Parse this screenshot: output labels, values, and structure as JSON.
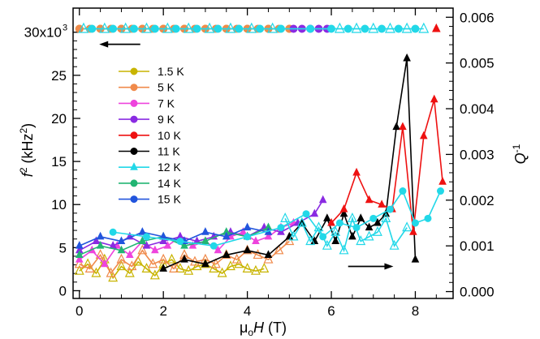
{
  "chart_data": {
    "type": "scatter",
    "title": "",
    "xlabel": {
      "pre": "μ",
      "sub": "o",
      "mid": "H",
      "post": " (T)"
    },
    "ylabel_left": {
      "main": "f",
      "sup": "2",
      "unit_pre": " (kHz",
      "unit_sup": "2",
      "unit_post": ")"
    },
    "ylabel_right": {
      "main": "Q",
      "sup": "-1"
    },
    "xlim": [
      -0.15,
      8.9
    ],
    "ylim_left": [
      -0.9,
      32.8
    ],
    "ylim_right": [
      -0.00015,
      0.0062
    ],
    "x_ticks": [
      0,
      2,
      4,
      6,
      8
    ],
    "x_tick_labels": [
      "0",
      "2",
      "4",
      "6",
      "8"
    ],
    "y_left_ticks": [
      0,
      5,
      10,
      15,
      20,
      25
    ],
    "y_left_tick_labels": [
      "0",
      "5",
      "10",
      "15",
      "20",
      "25"
    ],
    "y_left_top_label": "30x10",
    "y_left_top_sup": "3",
    "y_left_top_value": 30,
    "y_right_ticks": [
      0,
      0.001,
      0.002,
      0.003,
      0.004,
      0.005,
      0.006
    ],
    "y_right_tick_labels": [
      "0.000",
      "0.001",
      "0.002",
      "0.003",
      "0.004",
      "0.005",
      "0.006"
    ],
    "legend_position": "upper-left",
    "legend": [
      {
        "name": "1.5 K",
        "color": "#c8b400",
        "marker": "circle"
      },
      {
        "name": "5 K",
        "color": "#f08a4b",
        "marker": "circle"
      },
      {
        "name": "7 K",
        "color": "#ee44dd",
        "marker": "circle"
      },
      {
        "name": "9 K",
        "color": "#8a2be2",
        "marker": "circle"
      },
      {
        "name": "10 K",
        "color": "#ee1111",
        "marker": "circle"
      },
      {
        "name": "11 K",
        "color": "#000000",
        "marker": "circle"
      },
      {
        "name": "12 K",
        "color": "#22d8e8",
        "marker": "triangle"
      },
      {
        "name": "14 K",
        "color": "#22b573",
        "marker": "circle"
      },
      {
        "name": "15 K",
        "color": "#2255dd",
        "marker": "circle"
      }
    ],
    "arrows": [
      {
        "direction": "left",
        "x_from": 1.45,
        "x_to": 0.55,
        "y": 28.6,
        "axis": "left"
      },
      {
        "direction": "right",
        "x_from": 6.4,
        "x_to": 7.4,
        "y": 0.00055,
        "axis": "right"
      }
    ],
    "series": [
      {
        "name": "f2 1.5 K",
        "axis": "left",
        "color": "#c8b400",
        "marker": "circle",
        "x": [
          0,
          0.5,
          1,
          1.5,
          2,
          2.5,
          3,
          3.5,
          4,
          4.5,
          5
        ],
        "y": [
          30.4,
          30.4,
          30.4,
          30.4,
          30.4,
          30.4,
          30.4,
          30.4,
          30.4,
          30.4,
          30.4
        ]
      },
      {
        "name": "f2 5 K",
        "axis": "left",
        "color": "#f08a4b",
        "marker": "circle",
        "x": [
          0,
          0.25,
          0.5,
          0.75,
          1,
          1.25,
          1.5,
          1.75,
          2,
          2.25,
          2.5,
          2.75,
          3,
          3.25,
          3.5,
          3.75,
          4,
          4.25,
          4.5,
          4.75,
          5
        ],
        "y": [
          30.4,
          30.4,
          30.4,
          30.4,
          30.4,
          30.4,
          30.4,
          30.4,
          30.4,
          30.4,
          30.4,
          30.4,
          30.4,
          30.4,
          30.4,
          30.4,
          30.4,
          30.4,
          30.4,
          30.4,
          30.4
        ]
      },
      {
        "name": "f2 9 K",
        "axis": "left",
        "color": "#8a2be2",
        "marker": "circle",
        "x": [
          5.1,
          5.3,
          5.5,
          5.7,
          5.9
        ],
        "y": [
          30.4,
          30.4,
          30.4,
          30.4,
          30.4
        ]
      },
      {
        "name": "f2 12 K",
        "axis": "left",
        "color": "#22d8e8",
        "marker": "circle",
        "x": [
          0.3,
          0.8,
          1.3,
          1.8,
          2.3,
          2.8,
          3.3,
          3.8,
          4.3,
          4.8,
          5.5,
          6.0,
          6.4,
          6.8,
          7.2,
          7.6,
          8.0
        ],
        "y": [
          30.4,
          30.4,
          30.4,
          30.4,
          30.4,
          30.4,
          30.4,
          30.4,
          30.4,
          30.4,
          30.4,
          30.4,
          30.4,
          30.4,
          30.4,
          30.4,
          30.4
        ]
      },
      {
        "name": "f2 12 K tri",
        "axis": "left",
        "color": "#22d8e8",
        "marker": "triangle-open",
        "x": [
          0.1,
          0.6,
          1.1,
          1.6,
          2.1,
          2.6,
          3.1,
          3.6,
          4.1,
          4.6,
          6.2,
          6.6,
          7.0,
          7.4,
          7.8,
          8.2
        ],
        "y": [
          30.4,
          30.4,
          30.4,
          30.4,
          30.4,
          30.4,
          30.4,
          30.4,
          30.4,
          30.4,
          30.4,
          30.4,
          30.4,
          30.4,
          30.4,
          30.4
        ]
      },
      {
        "name": "f2 10 K",
        "axis": "left",
        "color": "#ee1111",
        "marker": "triangle",
        "x": [
          8.5
        ],
        "y": [
          30.4
        ]
      },
      {
        "name": "Q 1.5 K",
        "axis": "right",
        "color": "#c8b400",
        "marker": "triangle-open",
        "x": [
          0.0,
          0.2,
          0.4,
          0.6,
          0.8,
          1.0,
          1.2,
          1.4,
          1.6,
          1.8,
          2.0,
          2.2,
          2.4,
          2.6,
          2.8,
          3.0,
          3.2,
          3.4,
          3.6,
          3.8,
          4.0,
          4.2,
          4.4
        ],
        "y": [
          0.00045,
          0.0006,
          0.0004,
          0.0007,
          0.0003,
          0.00055,
          0.0004,
          0.00065,
          0.0005,
          0.00035,
          0.0006,
          0.0007,
          0.0005,
          0.00045,
          0.00055,
          0.0006,
          0.0005,
          0.0004,
          0.00055,
          0.0006,
          0.0005,
          0.00045,
          0.0005
        ]
      },
      {
        "name": "Q 5 K",
        "axis": "right",
        "color": "#f08a4b",
        "marker": "triangle-open",
        "x": [
          0.0,
          0.25,
          0.5,
          0.75,
          1.0,
          1.25,
          1.5,
          1.75,
          2.0,
          2.25,
          2.5,
          2.75,
          3.0,
          3.25,
          3.5,
          3.75,
          4.0,
          4.25,
          4.5,
          4.75,
          5.0
        ],
        "y": [
          0.0006,
          0.0005,
          0.0008,
          0.0004,
          0.0007,
          0.00055,
          0.0009,
          0.0006,
          0.0007,
          0.0005,
          0.0008,
          0.00065,
          0.0007,
          0.0006,
          0.0008,
          0.0007,
          0.0009,
          0.0008,
          0.0007,
          0.0009,
          0.0011
        ]
      },
      {
        "name": "Q 7 K",
        "axis": "right",
        "color": "#ee44dd",
        "marker": "triangle",
        "x": [
          0.0,
          0.3,
          0.6,
          0.9,
          1.2,
          1.5,
          1.8,
          2.1,
          2.4,
          2.7,
          3.0,
          3.3,
          3.6,
          3.9,
          4.2,
          4.5,
          4.8,
          5.1
        ],
        "y": [
          0.0007,
          0.0009,
          0.0006,
          0.001,
          0.0008,
          0.0011,
          0.0009,
          0.001,
          0.0012,
          0.001,
          0.0011,
          0.0009,
          0.0012,
          0.0013,
          0.0011,
          0.0012,
          0.0014,
          0.0015
        ]
      },
      {
        "name": "Q 9 K",
        "axis": "right",
        "color": "#8a2be2",
        "marker": "triangle",
        "x": [
          0.0,
          0.4,
          0.8,
          1.2,
          1.6,
          2.0,
          2.4,
          2.8,
          3.2,
          3.6,
          4.0,
          4.4,
          4.8,
          5.2,
          5.6,
          5.8
        ],
        "y": [
          0.0009,
          0.0011,
          0.001,
          0.0012,
          0.001,
          0.0011,
          0.0012,
          0.0011,
          0.0012,
          0.0013,
          0.0012,
          0.0014,
          0.0013,
          0.0015,
          0.0017,
          0.002
        ]
      },
      {
        "name": "Q 14 K",
        "axis": "right",
        "color": "#22b573",
        "marker": "triangle",
        "x": [
          0.0,
          0.5,
          1.0,
          1.5,
          2.0,
          2.5,
          3.0,
          3.5,
          4.0,
          4.5
        ],
        "y": [
          0.0008,
          0.001,
          0.0009,
          0.0011,
          0.0012,
          0.001,
          0.0011,
          0.0013,
          0.0012,
          0.0014
        ]
      },
      {
        "name": "Q 15 K",
        "axis": "right",
        "color": "#2255dd",
        "marker": "triangle",
        "x": [
          0.0,
          0.5,
          1.0,
          1.5,
          2.0,
          2.5,
          3.0,
          3.5,
          4.0,
          4.5
        ],
        "y": [
          0.001,
          0.0012,
          0.0011,
          0.0013,
          0.0012,
          0.0011,
          0.0013,
          0.0012,
          0.0014,
          0.0013
        ]
      },
      {
        "name": "Q 11 K",
        "axis": "right",
        "color": "#000000",
        "marker": "triangle",
        "x": [
          2.0,
          2.5,
          3.0,
          3.5,
          4.0,
          4.5,
          5.0,
          5.3,
          5.6,
          5.9,
          6.1,
          6.3,
          6.5,
          6.7,
          6.9,
          7.1,
          7.3,
          7.55,
          7.8,
          8.0
        ],
        "y": [
          0.0005,
          0.0007,
          0.0006,
          0.0008,
          0.0009,
          0.0008,
          0.0012,
          0.0015,
          0.0011,
          0.0016,
          0.0011,
          0.0017,
          0.0012,
          0.0016,
          0.0014,
          0.0015,
          0.0017,
          0.0036,
          0.0051,
          0.0007
        ]
      },
      {
        "name": "Q 10 K",
        "axis": "right",
        "color": "#ee1111",
        "marker": "triangle",
        "x": [
          6.0,
          6.3,
          6.6,
          6.9,
          7.2,
          7.45,
          7.7,
          7.95,
          8.2,
          8.45,
          8.65
        ],
        "y": [
          0.0015,
          0.0018,
          0.0026,
          0.002,
          0.0019,
          0.0018,
          0.0036,
          0.0013,
          0.0034,
          0.0042,
          0.0024
        ]
      },
      {
        "name": "Q 12 K",
        "axis": "right",
        "color": "#22d8e8",
        "marker": "triangle-open",
        "x": [
          4.9,
          5.1,
          5.3,
          5.5,
          5.7,
          5.9,
          6.1,
          6.3,
          6.5,
          6.7,
          6.9,
          7.1,
          7.3,
          7.5,
          7.8
        ],
        "y": [
          0.0016,
          0.0012,
          0.0015,
          0.0011,
          0.0014,
          0.001,
          0.0013,
          0.0009,
          0.0016,
          0.0011,
          0.0012,
          0.0013,
          0.0016,
          0.001,
          0.0014
        ]
      },
      {
        "name": "Q 12 K dots",
        "axis": "right",
        "color": "#22d8e8",
        "marker": "circle",
        "x": [
          0.8,
          1.6,
          2.4,
          3.2,
          4.0,
          4.8,
          5.4,
          5.8,
          6.2,
          6.6,
          7.0,
          7.4,
          7.7,
          8.0,
          8.3,
          8.6
        ],
        "y": [
          0.0013,
          0.0012,
          0.0011,
          0.001,
          0.0012,
          0.0014,
          0.0017,
          0.0012,
          0.0015,
          0.0014,
          0.0016,
          0.0018,
          0.0022,
          0.0015,
          0.0016,
          0.0022
        ]
      }
    ]
  }
}
